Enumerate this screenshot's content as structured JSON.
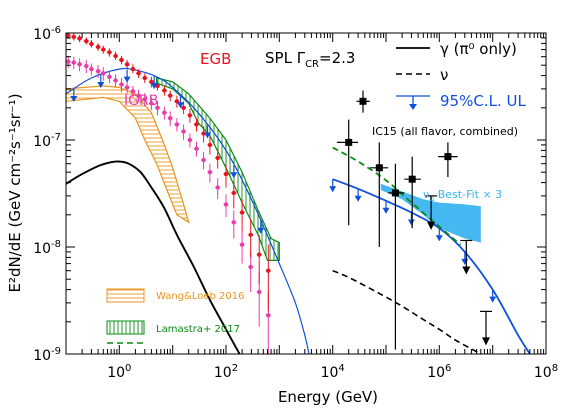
{
  "chart_data": {
    "type": "line",
    "title": "",
    "xlabel": "Energy (GeV)",
    "ylabel": "E²dN/dE (GeV cm⁻²s⁻¹sr⁻¹)",
    "x_scale": "log",
    "y_scale": "log",
    "xlim": [
      0.1,
      100000000
    ],
    "ylim": [
      1e-09,
      1e-06
    ],
    "x_ticks": [
      {
        "value": 1,
        "label_base": "10",
        "label_exp": "0"
      },
      {
        "value": 100,
        "label_base": "10",
        "label_exp": "2"
      },
      {
        "value": 10000,
        "label_base": "10",
        "label_exp": "4"
      },
      {
        "value": 1000000,
        "label_base": "10",
        "label_exp": "6"
      },
      {
        "value": 100000000,
        "label_base": "10",
        "label_exp": "8"
      }
    ],
    "y_ticks": [
      {
        "value": 1e-06,
        "label_base": "10",
        "label_exp": "-6"
      },
      {
        "value": 1e-07,
        "label_base": "10",
        "label_exp": "-7"
      },
      {
        "value": 1e-08,
        "label_base": "10",
        "label_exp": "-8"
      },
      {
        "value": 1e-09,
        "label_base": "10",
        "label_exp": "-9"
      }
    ],
    "annotations": {
      "egb": "EGB",
      "igrb": "IGRB",
      "spl_prefix": "SPL ",
      "spl_gamma": "Γ",
      "spl_sub": "CR",
      "spl_value": "=2.3",
      "ic15": "IC15 (all flavor, combined)",
      "numu_prefix": "ν",
      "numu_sub": "μ",
      "numu_text": " Best-Fit × 3"
    },
    "legend": {
      "placement": "top-right",
      "items": [
        {
          "label": "γ (π⁰ only)",
          "style": "solid-black"
        },
        {
          "label": "ν",
          "style": "dashed-black"
        },
        {
          "label": "95%C.L. UL",
          "style": "blue-arrow"
        }
      ]
    },
    "legend_bottom": {
      "placement": "bottom-left",
      "items": [
        {
          "label": "Wang&Loeb 2016",
          "style": "orange-hatched"
        },
        {
          "label": "Lamastra+ 2017",
          "style": "green-hatched"
        }
      ]
    },
    "colors": {
      "egb": "#e8141e",
      "igrb": "#e83ca8",
      "orange": "#e8961e",
      "green": "#0a8c14",
      "blue": "#0f50dc",
      "lightblue": "#3cb4f0",
      "black": "#000000"
    },
    "series": [
      {
        "name": "γ (π⁰ only)",
        "kind": "line",
        "points": [
          [
            0.1,
            3.9e-08
          ],
          [
            0.2,
            4.8e-08
          ],
          [
            0.4,
            5.7e-08
          ],
          [
            0.7,
            6.2e-08
          ],
          [
            1,
            6.3e-08
          ],
          [
            1.5,
            6e-08
          ],
          [
            2.5,
            5e-08
          ],
          [
            4,
            3.6e-08
          ],
          [
            7,
            2.3e-08
          ],
          [
            12,
            1.3e-08
          ],
          [
            25,
            6.5e-09
          ],
          [
            50,
            3.2e-09
          ],
          [
            100,
            1.7e-09
          ],
          [
            180,
            1e-09
          ]
        ]
      },
      {
        "name": "ν",
        "kind": "line",
        "points": [
          [
            10000,
            6e-09
          ],
          [
            20000,
            5.2e-09
          ],
          [
            50000,
            4.1e-09
          ],
          [
            100000,
            3.4e-09
          ],
          [
            200000,
            2.8e-09
          ],
          [
            500000,
            2.1e-09
          ],
          [
            1000000,
            1.7e-09
          ],
          [
            2000000,
            1.35e-09
          ],
          [
            5000000,
            1.05e-09
          ],
          [
            8000000,
            9.4e-10
          ]
        ]
      },
      {
        "name": "model-blue",
        "kind": "line",
        "points": [
          [
            0.1,
            2.7e-07
          ],
          [
            0.3,
            3.8e-07
          ],
          [
            1,
            4.6e-07
          ],
          [
            2,
            4.5e-07
          ],
          [
            5,
            3.9e-07
          ],
          [
            10,
            3.1e-07
          ],
          [
            30,
            1.8e-07
          ],
          [
            100,
            8e-08
          ],
          [
            300,
            2.8e-08
          ],
          [
            1000,
            7e-09
          ],
          [
            2000,
            3e-09
          ],
          [
            3000,
            1.5e-09
          ],
          [
            3600,
            1e-09
          ]
        ]
      },
      {
        "name": "nu-blue",
        "kind": "line",
        "points": [
          [
            10000,
            4.3e-08
          ],
          [
            30000,
            3.5e-08
          ],
          [
            100000,
            2.7e-08
          ],
          [
            300000,
            2.1e-08
          ],
          [
            1000000,
            1.5e-08
          ],
          [
            3000000,
            9e-09
          ],
          [
            10000000,
            4e-09
          ],
          [
            30000000,
            1.5e-09
          ],
          [
            50000000,
            1e-09
          ]
        ]
      },
      {
        "name": "Lamastra+ 2017 dashed",
        "kind": "line",
        "points": [
          [
            10000,
            8.5e-08
          ],
          [
            30000,
            6.3e-08
          ],
          [
            100000,
            4.2e-08
          ],
          [
            300000,
            2.6e-08
          ],
          [
            1000000,
            1.55e-08
          ],
          [
            2500000,
            1.05e-08
          ]
        ]
      }
    ],
    "bands": [
      {
        "name": "Wang&Loeb 2016",
        "color": "orange",
        "upper": [
          [
            0.1,
            3e-07
          ],
          [
            0.5,
            3.2e-07
          ],
          [
            1,
            3.1e-07
          ],
          [
            2,
            2.7e-07
          ],
          [
            4,
            1.8e-07
          ],
          [
            7,
            9e-08
          ],
          [
            10,
            5.5e-08
          ],
          [
            15,
            2.8e-08
          ],
          [
            20,
            1.7e-08
          ]
        ],
        "lower": [
          [
            0.1,
            2.3e-07
          ],
          [
            0.5,
            2.5e-07
          ],
          [
            1,
            2.3e-07
          ],
          [
            2,
            1.6e-07
          ],
          [
            3,
            1e-07
          ],
          [
            5,
            6e-08
          ],
          [
            8,
            3.3e-08
          ],
          [
            12,
            2e-08
          ],
          [
            20,
            1.7e-08
          ]
        ]
      },
      {
        "name": "Lamastra+ 2017",
        "color": "green",
        "upper": [
          [
            5,
            3.8e-07
          ],
          [
            10,
            3.5e-07
          ],
          [
            20,
            2.7e-07
          ],
          [
            50,
            1.6e-07
          ],
          [
            100,
            1e-07
          ],
          [
            200,
            5e-08
          ],
          [
            400,
            2.2e-08
          ],
          [
            700,
            1.2e-08
          ],
          [
            1000,
            1.1e-08
          ]
        ],
        "lower": [
          [
            5,
            3.4e-07
          ],
          [
            10,
            3e-07
          ],
          [
            20,
            2.2e-07
          ],
          [
            30,
            1.45e-07
          ],
          [
            50,
            1.1e-07
          ],
          [
            100,
            5.5e-08
          ],
          [
            200,
            2.6e-08
          ],
          [
            400,
            1.3e-08
          ],
          [
            600,
            7.5e-09
          ],
          [
            1000,
            7.5e-09
          ]
        ]
      },
      {
        "name": "νμ Best-Fit × 3",
        "color": "lightblue",
        "upper": [
          [
            80000,
            3.9e-08
          ],
          [
            200000,
            3.3e-08
          ],
          [
            500000,
            2.8e-08
          ],
          [
            1000000,
            2.6e-08
          ],
          [
            3000000,
            2.5e-08
          ],
          [
            6000000,
            2.4e-08
          ]
        ],
        "lower": [
          [
            80000,
            3.4e-08
          ],
          [
            200000,
            2.8e-08
          ],
          [
            500000,
            2e-08
          ],
          [
            1000000,
            1.5e-08
          ],
          [
            3000000,
            1.2e-08
          ],
          [
            6000000,
            1.1e-08
          ]
        ]
      }
    ],
    "egb_points": [
      {
        "x": 0.11,
        "y": 9.5e-07,
        "ylo": 8.8e-07,
        "yhi": 1e-06
      },
      {
        "x": 0.14,
        "y": 9.2e-07,
        "ylo": 8.5e-07,
        "yhi": 1e-06
      },
      {
        "x": 0.18,
        "y": 8.9e-07,
        "ylo": 8.2e-07,
        "yhi": 9.6e-07
      },
      {
        "x": 0.24,
        "y": 8.4e-07,
        "ylo": 7.8e-07,
        "yhi": 9.1e-07
      },
      {
        "x": 0.3,
        "y": 7.9e-07,
        "ylo": 7.3e-07,
        "yhi": 8.6e-07
      },
      {
        "x": 0.4,
        "y": 7.4e-07,
        "ylo": 6.8e-07,
        "yhi": 8e-07
      },
      {
        "x": 0.5,
        "y": 7e-07,
        "ylo": 6.4e-07,
        "yhi": 7.6e-07
      },
      {
        "x": 0.65,
        "y": 6.6e-07,
        "ylo": 6e-07,
        "yhi": 7.2e-07
      },
      {
        "x": 0.85,
        "y": 6.1e-07,
        "ylo": 5.6e-07,
        "yhi": 6.7e-07
      },
      {
        "x": 1.1,
        "y": 5.6e-07,
        "ylo": 5.1e-07,
        "yhi": 6.1e-07
      },
      {
        "x": 1.4,
        "y": 5.1e-07,
        "ylo": 4.7e-07,
        "yhi": 5.6e-07
      },
      {
        "x": 1.8,
        "y": 4.6e-07,
        "ylo": 4.2e-07,
        "yhi": 5.1e-07
      },
      {
        "x": 2.3,
        "y": 4.2e-07,
        "ylo": 3.8e-07,
        "yhi": 4.6e-07
      },
      {
        "x": 3,
        "y": 3.8e-07,
        "ylo": 3.4e-07,
        "yhi": 4.2e-07
      },
      {
        "x": 4,
        "y": 3.5e-07,
        "ylo": 3.1e-07,
        "yhi": 3.9e-07
      },
      {
        "x": 5.2,
        "y": 3.2e-07,
        "ylo": 2.9e-07,
        "yhi": 3.6e-07
      },
      {
        "x": 7,
        "y": 2.9e-07,
        "ylo": 2.6e-07,
        "yhi": 3.2e-07
      },
      {
        "x": 9,
        "y": 2.6e-07,
        "ylo": 2.3e-07,
        "yhi": 2.9e-07
      },
      {
        "x": 12,
        "y": 2.3e-07,
        "ylo": 2e-07,
        "yhi": 2.6e-07
      },
      {
        "x": 16,
        "y": 2e-07,
        "ylo": 1.75e-07,
        "yhi": 2.3e-07
      },
      {
        "x": 21,
        "y": 1.7e-07,
        "ylo": 1.45e-07,
        "yhi": 1.95e-07
      },
      {
        "x": 28,
        "y": 1.4e-07,
        "ylo": 1.2e-07,
        "yhi": 1.6e-07
      },
      {
        "x": 38,
        "y": 1.15e-07,
        "ylo": 9.5e-08,
        "yhi": 1.35e-07
      },
      {
        "x": 50,
        "y": 9e-08,
        "ylo": 7.3e-08,
        "yhi": 1.08e-07
      },
      {
        "x": 70,
        "y": 6.8e-08,
        "ylo": 5.4e-08,
        "yhi": 8.3e-08
      },
      {
        "x": 100,
        "y": 4.8e-08,
        "ylo": 3.6e-08,
        "yhi": 6e-08
      },
      {
        "x": 140,
        "y": 3.2e-08,
        "ylo": 2.3e-08,
        "yhi": 4.1e-08
      },
      {
        "x": 200,
        "y": 2.1e-08,
        "ylo": 1.4e-08,
        "yhi": 2.8e-08
      },
      {
        "x": 290,
        "y": 1.3e-08,
        "ylo": 8e-09,
        "yhi": 1.85e-08
      },
      {
        "x": 420,
        "y": 8.5e-09,
        "ylo": 4.5e-09,
        "yhi": 1.3e-08
      },
      {
        "x": 620,
        "y": 6e-09,
        "ylo": 2.5e-09,
        "yhi": 1.05e-08
      }
    ],
    "igrb_points": [
      {
        "x": 0.11,
        "y": 5.4e-07,
        "ylo": 4.7e-07,
        "yhi": 6.1e-07
      },
      {
        "x": 0.14,
        "y": 5.3e-07,
        "ylo": 4.6e-07,
        "yhi": 6e-07
      },
      {
        "x": 0.18,
        "y": 5.1e-07,
        "ylo": 4.4e-07,
        "yhi": 5.8e-07
      },
      {
        "x": 0.24,
        "y": 4.9e-07,
        "ylo": 4.2e-07,
        "yhi": 5.6e-07
      },
      {
        "x": 0.3,
        "y": 4.6e-07,
        "ylo": 4e-07,
        "yhi": 5.2e-07
      },
      {
        "x": 0.4,
        "y": 4.4e-07,
        "ylo": 3.8e-07,
        "yhi": 5e-07
      },
      {
        "x": 0.5,
        "y": 4.2e-07,
        "ylo": 3.6e-07,
        "yhi": 4.8e-07
      },
      {
        "x": 0.65,
        "y": 3.9e-07,
        "ylo": 3.4e-07,
        "yhi": 4.4e-07
      },
      {
        "x": 0.85,
        "y": 3.6e-07,
        "ylo": 3.1e-07,
        "yhi": 4.1e-07
      },
      {
        "x": 1.1,
        "y": 3.3e-07,
        "ylo": 2.8e-07,
        "yhi": 3.8e-07
      },
      {
        "x": 1.4,
        "y": 3.1e-07,
        "ylo": 2.7e-07,
        "yhi": 3.5e-07
      },
      {
        "x": 1.8,
        "y": 2.85e-07,
        "ylo": 2.5e-07,
        "yhi": 3.2e-07
      },
      {
        "x": 2.3,
        "y": 2.6e-07,
        "ylo": 2.25e-07,
        "yhi": 2.95e-07
      },
      {
        "x": 3,
        "y": 2.4e-07,
        "ylo": 2.05e-07,
        "yhi": 2.75e-07
      },
      {
        "x": 4,
        "y": 2.2e-07,
        "ylo": 1.9e-07,
        "yhi": 2.5e-07
      },
      {
        "x": 5.2,
        "y": 2e-07,
        "ylo": 1.7e-07,
        "yhi": 2.3e-07
      },
      {
        "x": 7,
        "y": 1.8e-07,
        "ylo": 1.55e-07,
        "yhi": 2.05e-07
      },
      {
        "x": 9,
        "y": 1.6e-07,
        "ylo": 1.35e-07,
        "yhi": 1.85e-07
      },
      {
        "x": 12,
        "y": 1.4e-07,
        "ylo": 1.2e-07,
        "yhi": 1.6e-07
      },
      {
        "x": 16,
        "y": 1.2e-07,
        "ylo": 1e-07,
        "yhi": 1.4e-07
      },
      {
        "x": 21,
        "y": 1e-07,
        "ylo": 8.5e-08,
        "yhi": 1.15e-07
      },
      {
        "x": 28,
        "y": 8.3e-08,
        "ylo": 7e-08,
        "yhi": 9.6e-08
      },
      {
        "x": 38,
        "y": 6.5e-08,
        "ylo": 5.3e-08,
        "yhi": 7.7e-08
      },
      {
        "x": 50,
        "y": 5e-08,
        "ylo": 4e-08,
        "yhi": 6e-08
      },
      {
        "x": 70,
        "y": 3.6e-08,
        "ylo": 2.8e-08,
        "yhi": 4.4e-08
      },
      {
        "x": 100,
        "y": 2.5e-08,
        "ylo": 1.9e-08,
        "yhi": 3.1e-08
      },
      {
        "x": 140,
        "y": 1.7e-08,
        "ylo": 1.2e-08,
        "yhi": 2.2e-08
      },
      {
        "x": 200,
        "y": 1.05e-08,
        "ylo": 7e-09,
        "yhi": 1.4e-08
      },
      {
        "x": 290,
        "y": 6.5e-09,
        "ylo": 3.8e-09,
        "yhi": 9.2e-09
      },
      {
        "x": 420,
        "y": 3.8e-09,
        "ylo": 1.8e-09,
        "yhi": 5.8e-09
      },
      {
        "x": 620,
        "y": 2.3e-09,
        "ylo": 1e-09,
        "yhi": 3.8e-09
      }
    ],
    "gamma_ul_x": [
      0.14,
      0.45,
      1.4,
      4.5,
      14,
      45,
      140,
      450
    ],
    "nu_ul_x": [
      10000,
      30000,
      100000,
      300000,
      1000000,
      3000000,
      10000000
    ],
    "ic15_points": [
      {
        "x": 20000,
        "y": 9.5e-08,
        "xlo": 12000,
        "xhi": 30000,
        "ylo": 1.6e-08,
        "yhi": 1.55e-07
      },
      {
        "x": 37000,
        "y": 2.3e-07,
        "xlo": 28000,
        "xhi": 50000,
        "ylo": 1.8e-07,
        "yhi": 2.9e-07
      },
      {
        "x": 75000,
        "y": 5.5e-08,
        "xlo": 50000,
        "xhi": 110000,
        "ylo": 1e-08,
        "yhi": 9.5e-08
      },
      {
        "x": 150000,
        "y": 3.2e-08,
        "xlo": 110000,
        "xhi": 220000,
        "ylo": 1.1e-09,
        "yhi": 6e-08
      },
      {
        "x": 310000,
        "y": 4.3e-08,
        "xlo": 220000,
        "xhi": 450000,
        "ylo": 1.5e-08,
        "yhi": 7e-08
      },
      {
        "x": 1450000,
        "y": 7e-08,
        "xlo": 950000,
        "xhi": 2200000,
        "ylo": 4.5e-08,
        "yhi": 9.5e-08
      }
    ],
    "ic15_ul": [
      {
        "x": 700000,
        "y": 3e-08
      },
      {
        "x": 3200000,
        "y": 1.15e-08
      },
      {
        "x": 7500000,
        "y": 2.5e-09
      }
    ]
  }
}
